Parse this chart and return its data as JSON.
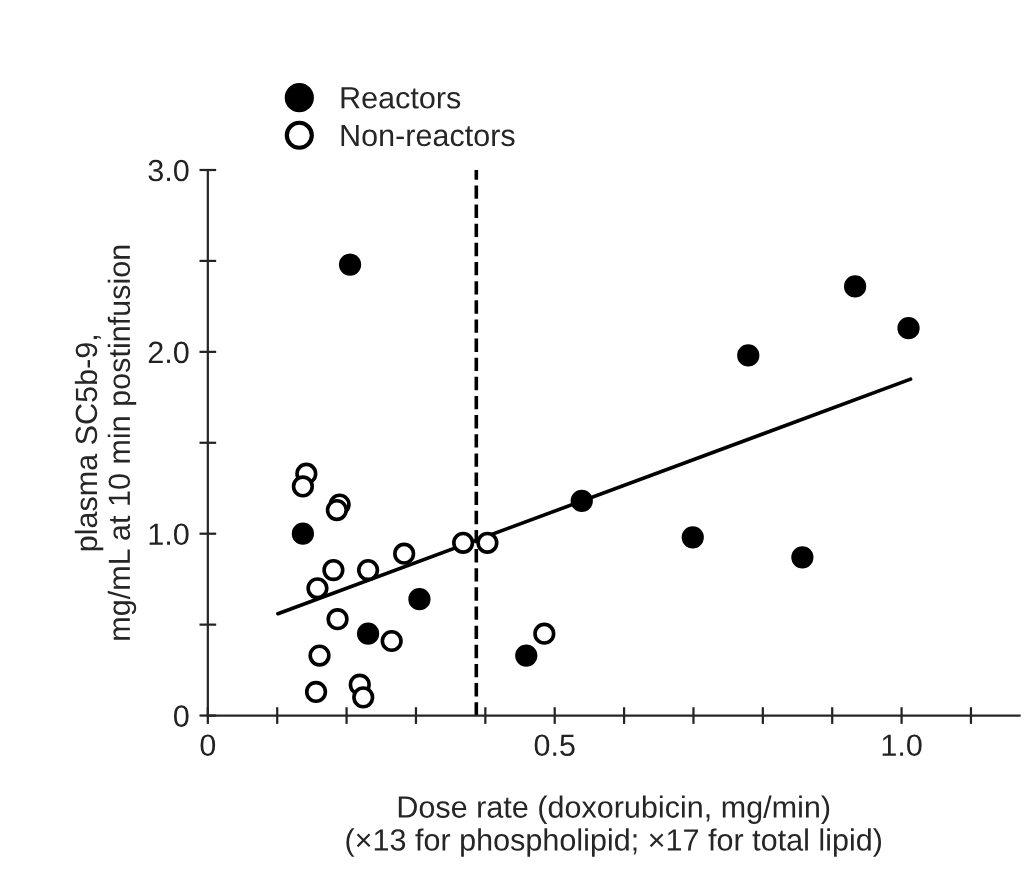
{
  "chart_data": {
    "type": "scatter",
    "xlabel": "Dose rate (doxorubicin, mg/min)\n(×13 for phospholipid; ×17 for total lipid)",
    "ylabel": "plasma SC5b-9,\nmg/mL at 10 min postinfusion",
    "series": [
      {
        "name": "Reactors",
        "color": "#000000",
        "x": [
          0.205,
          0.137,
          0.305,
          0.231,
          0.459,
          0.539,
          0.933,
          1.01,
          0.779,
          0.699,
          0.857
        ],
        "values": [
          2.48,
          1.0,
          0.64,
          0.45,
          0.33,
          1.18,
          2.36,
          2.13,
          1.98,
          0.98,
          0.87
        ]
      },
      {
        "name": "Non-reactors",
        "color": "#ffffff",
        "x": [
          0.142,
          0.137,
          0.19,
          0.186,
          0.181,
          0.158,
          0.231,
          0.283,
          0.368,
          0.403,
          0.187,
          0.265,
          0.161,
          0.156,
          0.219,
          0.224,
          0.485
        ],
        "values": [
          1.33,
          1.26,
          1.16,
          1.13,
          0.8,
          0.7,
          0.8,
          0.89,
          0.95,
          0.95,
          0.53,
          0.41,
          0.33,
          0.13,
          0.17,
          0.1,
          0.45
        ]
      },
      {
        "type": "line",
        "color": "#000000",
        "marker": "none",
        "x": [
          0.101,
          1.013
        ],
        "values": [
          0.56,
          1.85
        ]
      }
    ],
    "ref_lines": [
      {
        "axis": "x",
        "value": 0.387,
        "line_style": "dashed",
        "color": "#000000"
      }
    ],
    "xlim": [
      0,
      1.17
    ],
    "xticks": [
      0,
      {
        "value": 0.1,
        "label": null
      },
      {
        "value": 0.2,
        "label": null
      },
      {
        "value": 0.3,
        "label": null
      },
      {
        "value": 0.4,
        "label": null
      },
      {
        "value": 0.5,
        "label": "0.5"
      },
      {
        "value": 0.6,
        "label": null
      },
      {
        "value": 0.7,
        "label": null
      },
      {
        "value": 0.8,
        "label": null
      },
      {
        "value": 0.9,
        "label": null
      },
      {
        "value": 1.0,
        "label": "1.0"
      },
      {
        "value": 1.1,
        "label": null
      }
    ],
    "ylim": [
      0,
      3.0
    ],
    "yticks": [
      0,
      {
        "value": 0.5,
        "label": null
      },
      {
        "value": 1.0,
        "label": "1.0"
      },
      {
        "value": 1.5,
        "label": null
      },
      {
        "value": 2.0,
        "label": "2.0"
      },
      {
        "value": 2.5,
        "label": null
      },
      {
        "value": 3.0,
        "label": "3.0"
      }
    ],
    "marker": "circle",
    "grid": false,
    "legend": "top left"
  }
}
